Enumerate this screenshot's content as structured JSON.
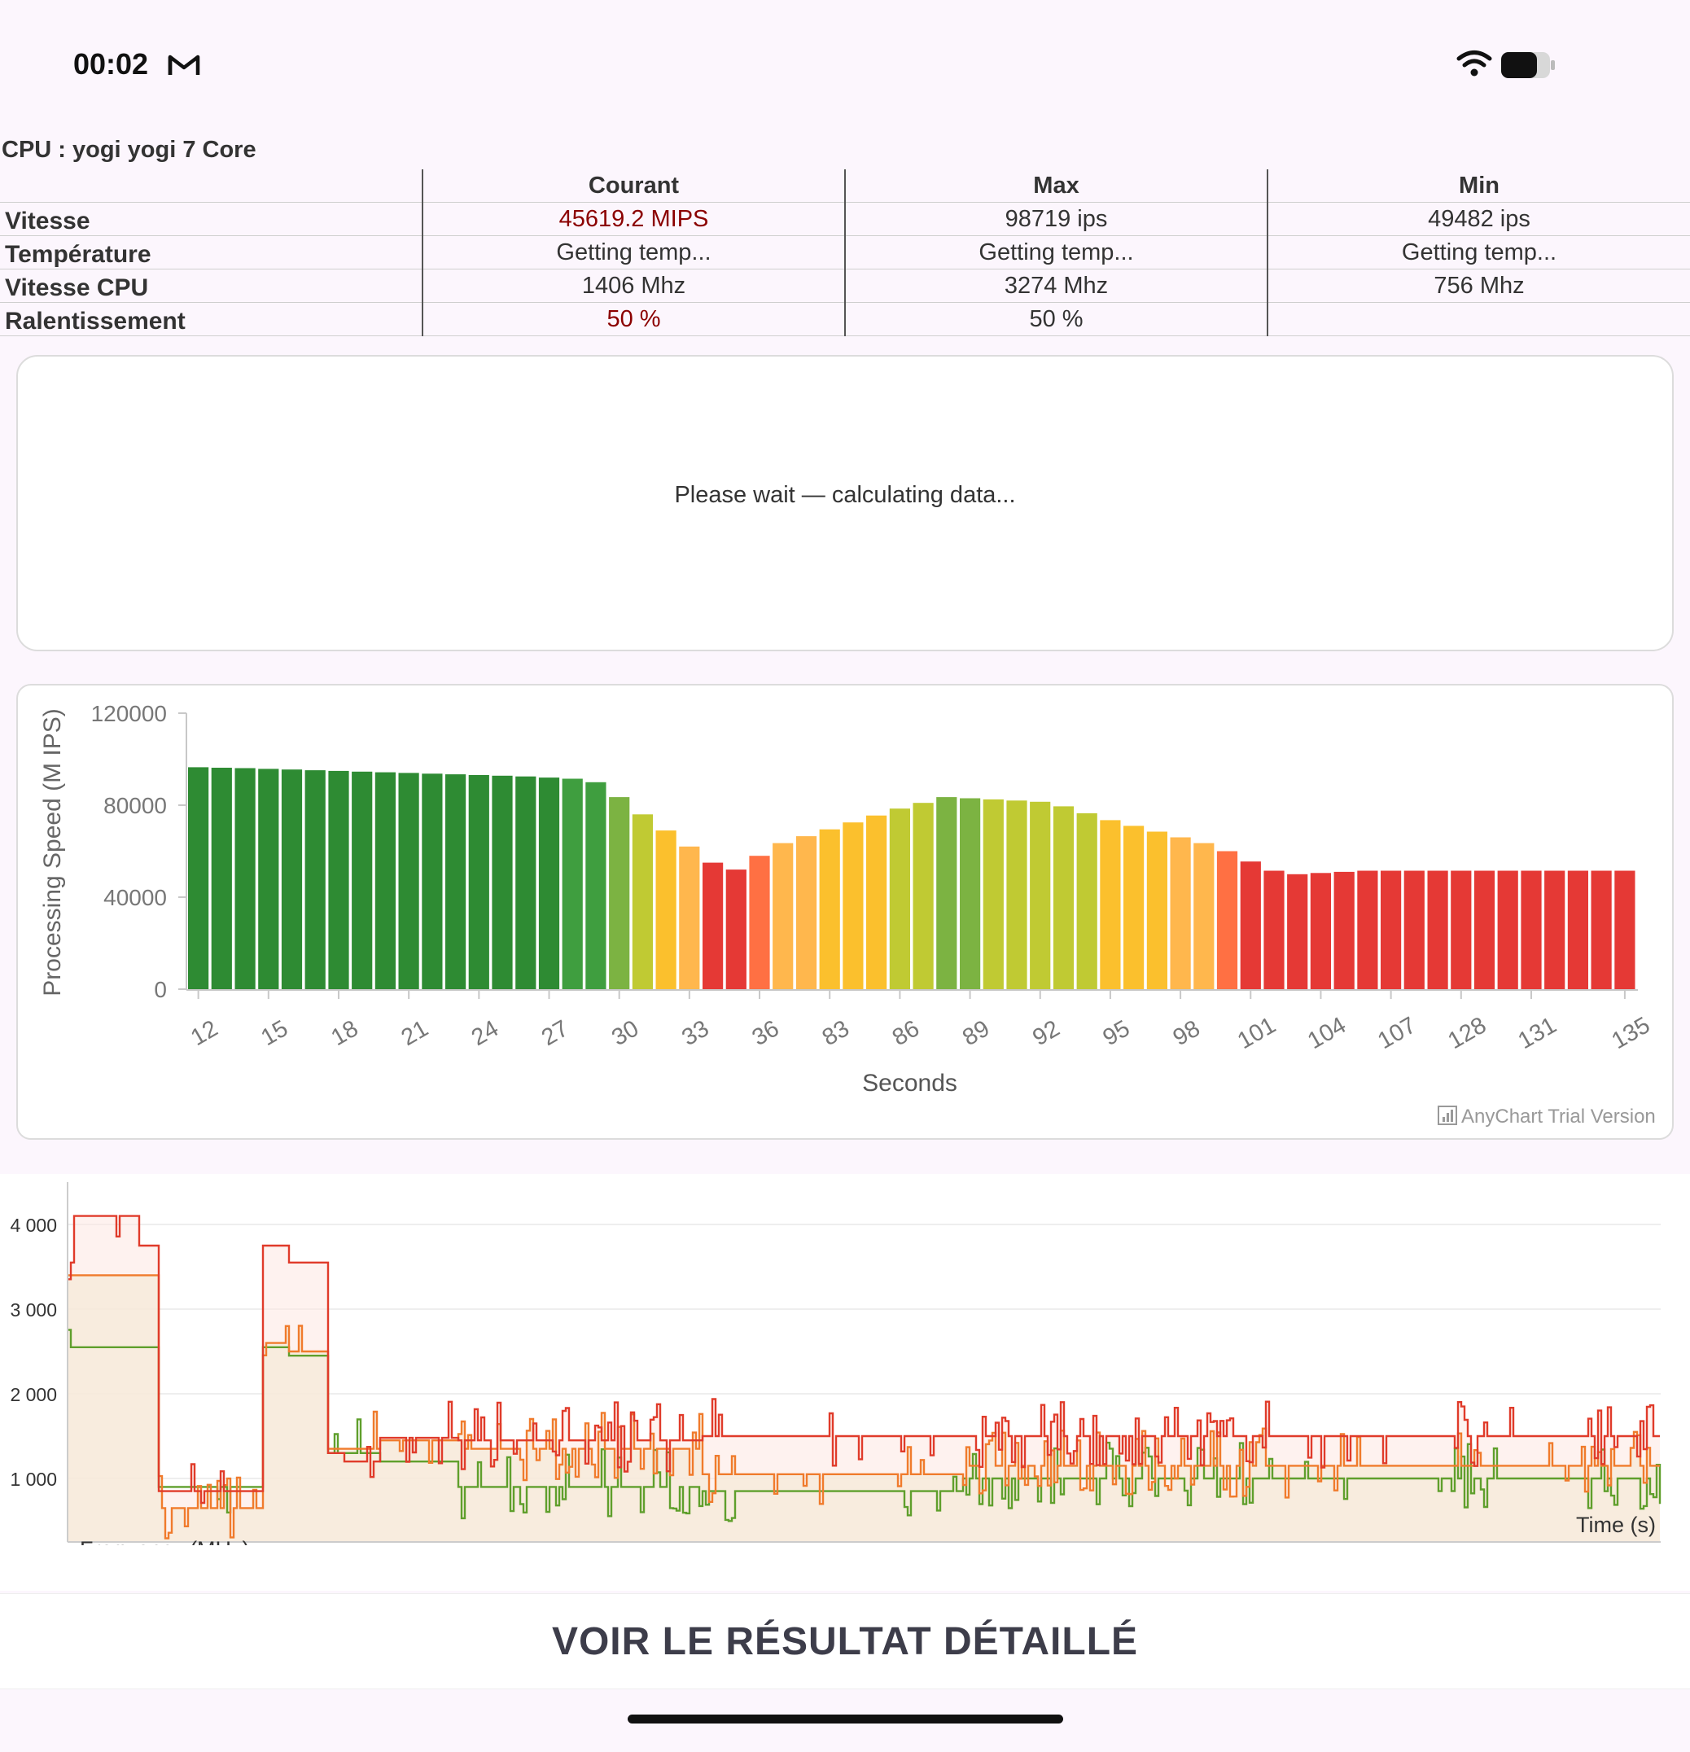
{
  "status_bar": {
    "time": "00:02",
    "icons": [
      "gmail-icon",
      "wifi-icon",
      "battery-icon"
    ]
  },
  "cpu_title": "CPU : yogi yogi 7 Core",
  "stats_table": {
    "headers": [
      "",
      "Courant",
      "Max",
      "Min"
    ],
    "rows": [
      {
        "label": "Vitesse",
        "values": [
          "45619.2 MIPS",
          "98719 ips",
          "49482 ips"
        ],
        "highlight_current": true
      },
      {
        "label": "Température",
        "values": [
          "Getting temp...",
          "Getting temp...",
          "Getting temp..."
        ],
        "highlight_current": false
      },
      {
        "label": "Vitesse CPU",
        "values": [
          "1406 Mhz",
          "3274 Mhz",
          "756 Mhz"
        ],
        "highlight_current": false
      },
      {
        "label": "Ralentissement",
        "values": [
          "50 %",
          "50 %",
          ""
        ],
        "highlight_current": true
      }
    ],
    "highlight_color": "#8b0000"
  },
  "wait_message": "Please wait — calculating data...",
  "chart_data": [
    {
      "type": "bar",
      "ylabel": "Processing Speed (M IPS)",
      "xlabel": "Seconds",
      "ylim": [
        0,
        120000
      ],
      "y_ticks": [
        "0",
        "40000",
        "80000",
        "120000"
      ],
      "x_tick_labels": [
        "12",
        "15",
        "18",
        "21",
        "24",
        "27",
        "30",
        "33",
        "36",
        "83",
        "86",
        "89",
        "92",
        "95",
        "98",
        "101",
        "104",
        "107",
        "128",
        "131",
        "135"
      ],
      "values": [
        96500,
        96300,
        96100,
        95800,
        95500,
        95200,
        94900,
        94600,
        94300,
        94000,
        93700,
        93400,
        93100,
        92800,
        92500,
        92000,
        91500,
        90000,
        83500,
        76000,
        69000,
        62000,
        55000,
        52000,
        58000,
        63500,
        66500,
        69500,
        72500,
        75500,
        78500,
        81000,
        83500,
        83000,
        82500,
        82000,
        81500,
        79500,
        76500,
        73500,
        71000,
        68500,
        66000,
        63500,
        60000,
        55500,
        51500,
        50000,
        50500,
        51000,
        51500,
        51500,
        51500,
        51500,
        51500,
        51500,
        51500,
        51500,
        51500,
        51500,
        51500,
        51500
      ],
      "credit": "AnyChart Trial Version",
      "grid": false,
      "legend": "none"
    },
    {
      "type": "line",
      "xlabel": "Time (s)",
      "ylabel": "Frequency (MHz)",
      "y_ticks": [
        "1 000",
        "2 000",
        "3 000",
        "4 000"
      ],
      "ylim": [
        250,
        4500
      ],
      "series": [
        {
          "color": "#e03b2a"
        },
        {
          "color": "#f07b2c"
        },
        {
          "color": "#5f9f2c"
        }
      ],
      "grid": true,
      "legend": "none"
    }
  ],
  "colors": {
    "bar_gradient": [
      "#2e8b33",
      "#3f9e3f",
      "#7cb342",
      "#c0ca33",
      "#fbc02d",
      "#ffb74d",
      "#ff7043",
      "#e53935"
    ],
    "background": "#fcf6fd"
  },
  "detail_button_label": "VOIR LE RÉSULTAT DÉTAILLÉ"
}
